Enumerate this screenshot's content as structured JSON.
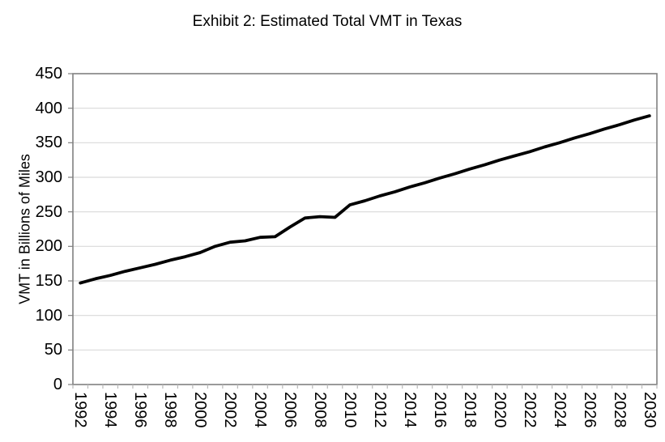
{
  "chart_data": {
    "type": "line",
    "title": "Exhibit 2: Estimated Total VMT in Texas",
    "ylabel": "VMT in Billions of Miles",
    "xlabel": "",
    "x": [
      1992,
      1993,
      1994,
      1995,
      1996,
      1997,
      1998,
      1999,
      2000,
      2001,
      2002,
      2003,
      2004,
      2005,
      2006,
      2007,
      2008,
      2009,
      2010,
      2011,
      2012,
      2013,
      2014,
      2015,
      2016,
      2017,
      2018,
      2019,
      2020,
      2021,
      2022,
      2023,
      2024,
      2025,
      2026,
      2027,
      2028,
      2029,
      2030
    ],
    "series": [
      {
        "name": "Estimated Total VMT",
        "values": [
          147,
          153,
          158,
          164,
          169,
          174,
          180,
          185,
          191,
          200,
          206,
          208,
          213,
          214,
          228,
          241,
          243,
          242,
          260,
          266,
          273,
          279,
          286,
          292,
          299,
          305,
          312,
          318,
          325,
          331,
          337,
          344,
          350,
          357,
          363,
          370,
          376,
          383,
          389
        ]
      }
    ],
    "ylim": [
      0,
      450
    ],
    "ytick_step": 50,
    "ytick_labels": [
      "0",
      "50",
      "100",
      "150",
      "200",
      "250",
      "300",
      "350",
      "400",
      "450"
    ],
    "xtick_label_every": 2,
    "xtick_labels": [
      "1992",
      "1994",
      "1996",
      "1998",
      "2000",
      "2002",
      "2004",
      "2006",
      "2008",
      "2010",
      "2012",
      "2014",
      "2016",
      "2018",
      "2020",
      "2022",
      "2024",
      "2026",
      "2028",
      "2030"
    ],
    "grid": "horizontal-only",
    "legend": "none",
    "line_color": "#000000",
    "gridline_color": "#d9d9d9",
    "axis_color": "#808080",
    "minor_tick_color": "#b8b8b8",
    "background_color": "#ffffff"
  }
}
